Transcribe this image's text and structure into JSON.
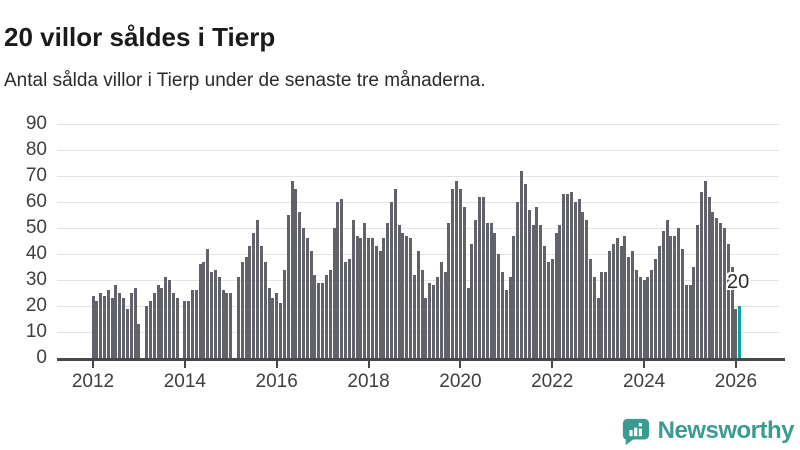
{
  "page": {
    "title": "20 villor såldes i Tierp",
    "subtitle": "Antal sålda villor i Tierp under de senaste tre månaderna."
  },
  "chart_data": {
    "type": "bar",
    "title": "20 villor såldes i Tierp",
    "subtitle": "Antal sålda villor i Tierp under de senaste tre månaderna.",
    "x_frequency": "monthly",
    "x_start": "2012-01",
    "x_end": "2026-02",
    "values": [
      24,
      22,
      25,
      24,
      26,
      23,
      28,
      25,
      23,
      19,
      25,
      27,
      13,
      0,
      20,
      22,
      25,
      28,
      27,
      31,
      30,
      25,
      23,
      0,
      22,
      22,
      26,
      26,
      36,
      37,
      42,
      33,
      34,
      31,
      26,
      25,
      25,
      0,
      31,
      37,
      39,
      43,
      48,
      53,
      43,
      37,
      27,
      23,
      25,
      21,
      34,
      55,
      68,
      65,
      56,
      50,
      46,
      41,
      32,
      29,
      29,
      32,
      34,
      50,
      60,
      61,
      37,
      38,
      53,
      47,
      46,
      52,
      46,
      46,
      43,
      41,
      46,
      52,
      60,
      65,
      51,
      48,
      47,
      46,
      32,
      41,
      34,
      23,
      29,
      28,
      31,
      37,
      33,
      52,
      65,
      68,
      65,
      58,
      27,
      44,
      53,
      62,
      62,
      52,
      52,
      48,
      40,
      33,
      26,
      31,
      47,
      60,
      72,
      67,
      57,
      51,
      58,
      51,
      43,
      37,
      38,
      48,
      51,
      63,
      63,
      64,
      60,
      61,
      56,
      53,
      38,
      31,
      23,
      33,
      33,
      41,
      44,
      46,
      43,
      47,
      39,
      41,
      34,
      31,
      30,
      31,
      34,
      38,
      43,
      49,
      53,
      47,
      47,
      50,
      42,
      28,
      28,
      35,
      51,
      64,
      68,
      62,
      56,
      54,
      52,
      50,
      44,
      35,
      19,
      20
    ],
    "x_tick_labels": [
      "2012",
      "2014",
      "2016",
      "2018",
      "2020",
      "2022",
      "2024",
      "2026"
    ],
    "y_tick_labels": [
      "0",
      "10",
      "20",
      "30",
      "40",
      "50",
      "60",
      "70",
      "80",
      "90"
    ],
    "ylim": [
      0,
      90
    ],
    "grid": true,
    "legend": "none",
    "bar_color": "#62626a",
    "highlight": {
      "index": 169,
      "value": 20,
      "label": "20",
      "color": "#0ba3a0"
    }
  },
  "footer": {
    "brand": "Newsworthy",
    "brand_color": "#3a9c90",
    "logo_icon": "bar-chart-speech-bubble-icon"
  }
}
